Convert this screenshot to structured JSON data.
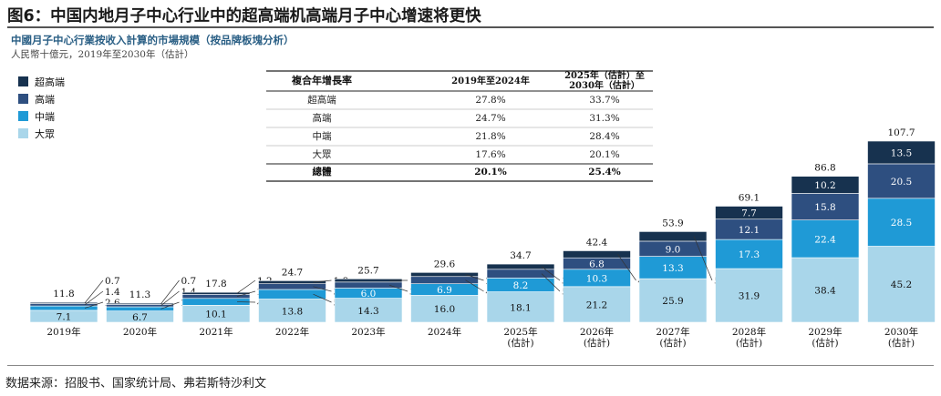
{
  "figure_title": "图6：中国内地月子中心行业中的超高端机高端月子中心增速将更快",
  "source_note": "数据来源：招股书、国家统计局、弗若斯特沙利文",
  "chart_data": {
    "type": "bar",
    "stacked": true,
    "title": "中國月子中心行業按收入計算的市場規模（按品牌板塊分析）",
    "subtitle": "人民幣十億元，2019年至2030年（估計）",
    "categories": [
      "2019年",
      "2020年",
      "2021年",
      "2022年",
      "2023年",
      "2024年",
      "2025年\n(估計)",
      "2026年\n(估計)",
      "2027年\n(估計)",
      "2028年\n(估計)",
      "2029年\n(估計)",
      "2030年\n(估計)"
    ],
    "series": [
      {
        "name": "大眾",
        "color": "#a9d6ea",
        "values": [
          7.1,
          6.7,
          10.1,
          13.8,
          14.3,
          16.0,
          18.1,
          21.2,
          25.9,
          31.9,
          38.4,
          45.2
        ]
      },
      {
        "name": "中端",
        "color": "#1f9ad6",
        "values": [
          2.6,
          2.5,
          4.1,
          5.7,
          6.0,
          6.9,
          8.2,
          10.3,
          13.3,
          17.3,
          22.4,
          28.5
        ]
      },
      {
        "name": "高端",
        "color": "#2e4f80",
        "values": [
          1.4,
          1.4,
          2.4,
          3.4,
          3.6,
          4.3,
          5.2,
          6.8,
          9.0,
          12.1,
          15.8,
          20.5
        ]
      },
      {
        "name": "超高端",
        "color": "#17324f",
        "values": [
          0.7,
          0.7,
          1.2,
          1.8,
          1.9,
          2.4,
          3.1,
          4.2,
          5.7,
          7.7,
          10.2,
          13.5
        ]
      }
    ],
    "totals": [
      11.8,
      11.3,
      17.8,
      24.7,
      25.7,
      29.6,
      34.7,
      42.4,
      53.9,
      69.1,
      86.8,
      107.7
    ],
    "legend_order": [
      "超高端",
      "高端",
      "中端",
      "大眾"
    ],
    "legend_position": "top-left",
    "cagr_table": {
      "headers": [
        "複合年增長率",
        "2019年至2024年",
        "2025年（估計）至\n2030年（估計）"
      ],
      "rows": [
        [
          "超高端",
          "27.8%",
          "33.7%"
        ],
        [
          "高端",
          "24.7%",
          "31.3%"
        ],
        [
          "中端",
          "21.8%",
          "28.4%"
        ],
        [
          "大眾",
          "17.6%",
          "20.1%"
        ]
      ],
      "total_row": [
        "總體",
        "20.1%",
        "25.4%"
      ]
    }
  }
}
